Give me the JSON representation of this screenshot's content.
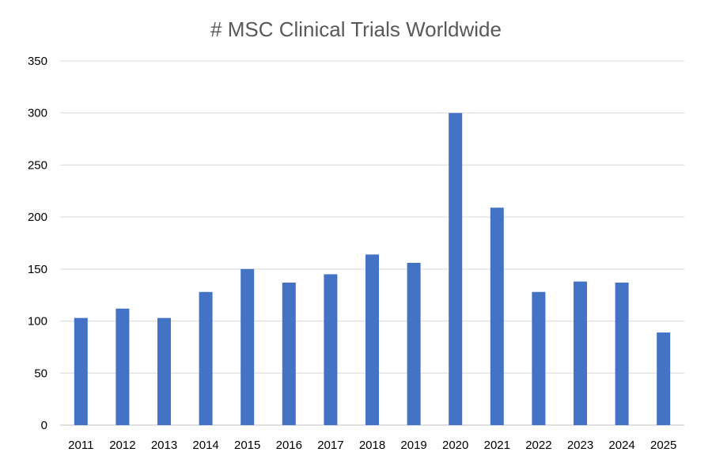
{
  "chart_data": {
    "type": "bar",
    "title": "# MSC Clinical Trials Worldwide",
    "xlabel": "",
    "ylabel": "",
    "categories": [
      "2011",
      "2012",
      "2013",
      "2014",
      "2015",
      "2016",
      "2017",
      "2018",
      "2019",
      "2020",
      "2021",
      "2022",
      "2023",
      "2024",
      "2025"
    ],
    "values": [
      103,
      112,
      103,
      128,
      150,
      137,
      145,
      164,
      156,
      300,
      209,
      128,
      138,
      137,
      89
    ],
    "ylim": [
      0,
      350
    ],
    "yticks": [
      0,
      50,
      100,
      150,
      200,
      250,
      300,
      350
    ],
    "grid": true,
    "legend": "none",
    "colors": {
      "bar": "#4472C4",
      "grid": "#D9D9D9",
      "title": "#595959"
    }
  }
}
